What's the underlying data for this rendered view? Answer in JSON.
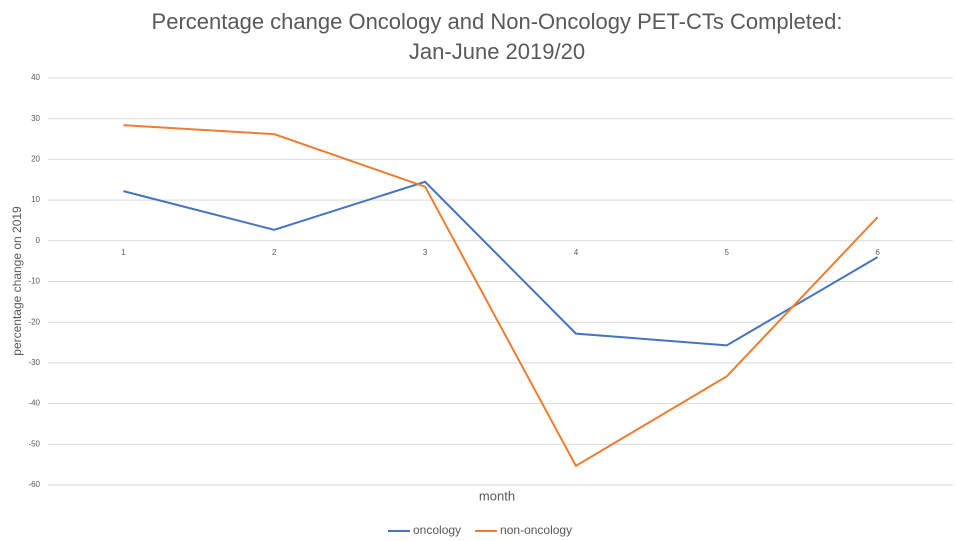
{
  "chart_data": {
    "type": "line",
    "title": [
      "Percentage change Oncology and Non-Oncology PET-CTs Completed:",
      "Jan-June 2019/20"
    ],
    "x_label": "month",
    "y_label": "percentage change on 2019",
    "categories": [
      "1",
      "2",
      "3",
      "4",
      "5",
      "6"
    ],
    "series": [
      {
        "name": "oncology",
        "color": "#4472c4",
        "values": [
          12.2,
          2.7,
          14.5,
          -22.8,
          -25.7,
          -4
        ]
      },
      {
        "name": "non-oncology",
        "color": "#ed7d31",
        "values": [
          28.4,
          26.2,
          13.3,
          -55.3,
          -33.3,
          5.8
        ]
      }
    ],
    "ylim": [
      -60,
      40
    ],
    "yticks": [
      -60,
      -50,
      -40,
      -30,
      -20,
      -10,
      0,
      10,
      20,
      30,
      40
    ],
    "grid": true,
    "legend": "bottom"
  }
}
